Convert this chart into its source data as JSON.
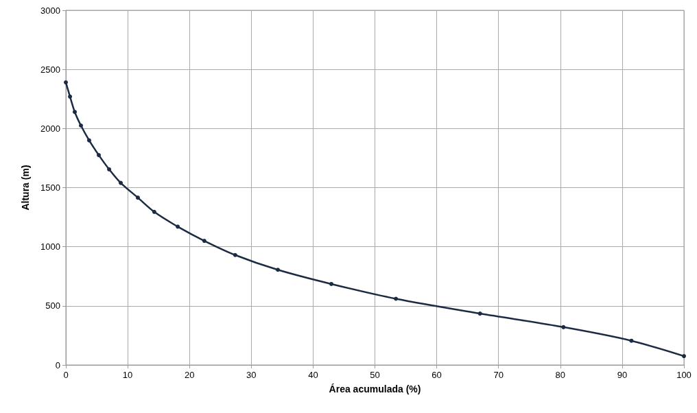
{
  "chart_data": {
    "type": "line",
    "xlabel": "Área acumulada (%)",
    "ylabel": "Altura (m)",
    "x": [
      0,
      0.67,
      1.44,
      2.44,
      3.77,
      5.33,
      7.0,
      8.88,
      11.65,
      14.3,
      18.1,
      22.4,
      27.4,
      34.3,
      42.95,
      53.4,
      67.0,
      80.5,
      91.5,
      100
    ],
    "series": [
      {
        "color": "#1c2b44",
        "values": [
          2390,
          2270,
          2140,
          2025,
          1900,
          1775,
          1655,
          1540,
          1415,
          1295,
          1170,
          1050,
          930,
          805,
          685,
          560,
          435,
          320,
          205,
          75
        ]
      }
    ],
    "xlim": [
      0,
      100
    ],
    "xticks": [
      0,
      10,
      20,
      30,
      40,
      50,
      60,
      70,
      80,
      90,
      100
    ],
    "ylim": [
      0,
      3000
    ],
    "yticks": [
      0,
      500,
      1000,
      1500,
      2000,
      2500,
      3000
    ],
    "grid": true,
    "marker": "circle",
    "line_style": "solid"
  }
}
